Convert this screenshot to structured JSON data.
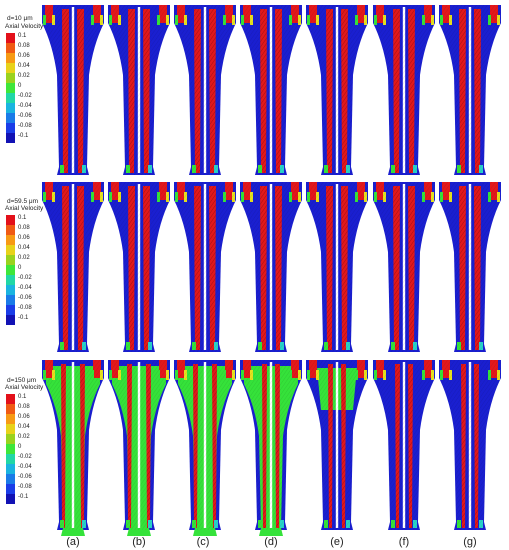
{
  "rows": [
    {
      "diameter_label": "d=10 μm",
      "legend_title": "Axial Velocity"
    },
    {
      "diameter_label": "d=59.5 μm",
      "legend_title": "Axial Velocity"
    },
    {
      "diameter_label": "d=150 μm",
      "legend_title": "Axial Velocity"
    }
  ],
  "legend_ticks": [
    "0.1",
    "0.08",
    "0.06",
    "0.04",
    "0.02",
    "0",
    "-0.02",
    "-0.04",
    "-0.06",
    "-0.08",
    "-0.1"
  ],
  "legend_colors": [
    "#e3101a",
    "#f05a14",
    "#f79a14",
    "#e8d21a",
    "#9ad21e",
    "#3ee63a",
    "#21d7a6",
    "#1ab4e0",
    "#1a7be8",
    "#1a3de8",
    "#1212b4"
  ],
  "panel_labels": [
    "(a)",
    "(b)",
    "(c)",
    "(d)",
    "(e)",
    "(f)",
    "(g)"
  ],
  "colors": {
    "blue": "#1a1fd0",
    "red": "#e3181b",
    "green": "#35e23a",
    "cyan": "#28d2c8",
    "yellow": "#e6e21e",
    "white": "#ffffff"
  }
}
